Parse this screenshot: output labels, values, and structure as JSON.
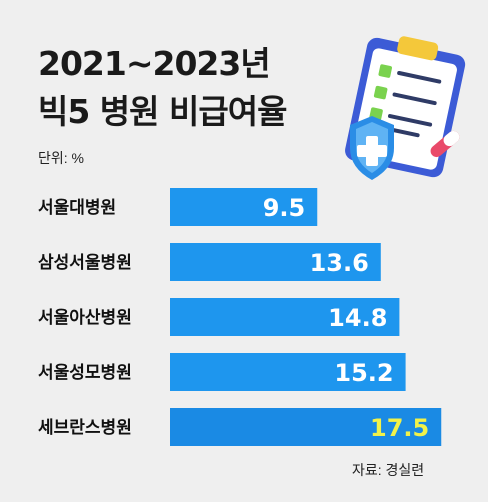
{
  "header": {
    "title_line1": "2021~2023년",
    "title_line2": "빅5 병원 비급여율",
    "unit": "단위: %"
  },
  "footer": {
    "source": "자료: 경실련"
  },
  "colors": {
    "bar": "#1e96ee",
    "bar_highlight": "#1a8ae4",
    "value_text": "#ffffff",
    "value_highlight": "#f1f24a",
    "background": "#efefef"
  },
  "chart_data": {
    "type": "bar",
    "orientation": "horizontal",
    "title": "2021~2023년 빅5 병원 비급여율",
    "unit": "단위: %",
    "categories": [
      "서울대병원",
      "삼성서울병원",
      "서울아산병원",
      "서울성모병원",
      "세브란스병원"
    ],
    "values": [
      9.5,
      13.6,
      14.8,
      15.2,
      17.5
    ],
    "value_labels": [
      "9.5",
      "13.6",
      "14.8",
      "15.2",
      "17.5"
    ],
    "highlight_index": 4,
    "grid": false
  },
  "illustration": {
    "icon": "clipboard-checklist-shield-icon"
  }
}
